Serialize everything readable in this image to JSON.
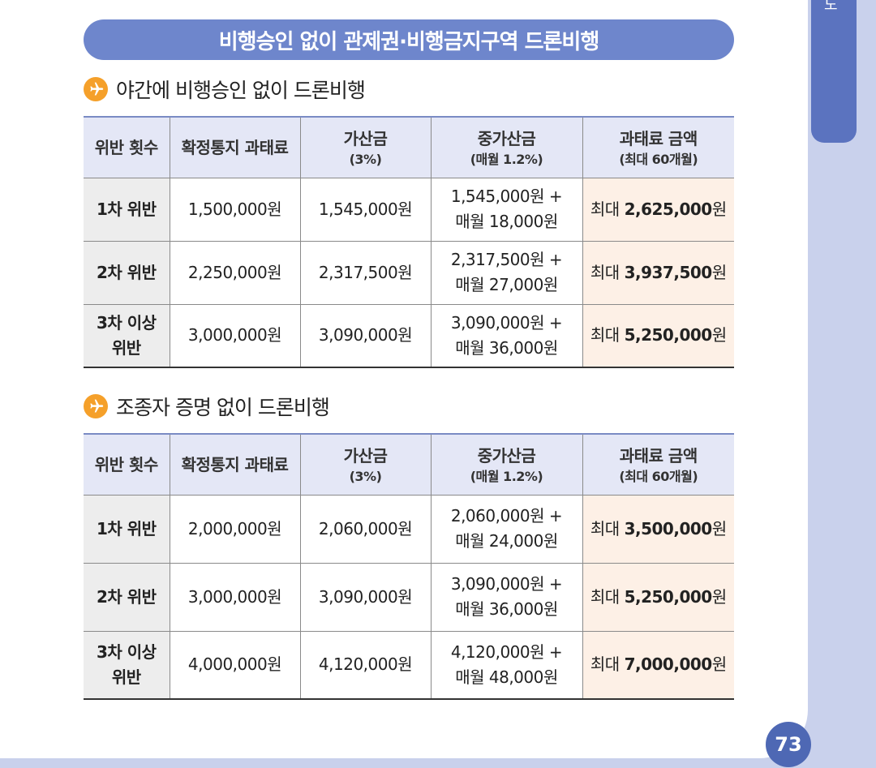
{
  "side_tab_label": "노",
  "banner_title": "비행승인 없이 관제권·비행금지구역 드론비행",
  "page_number": "73",
  "accent_color": "#6e86cc",
  "icon_color": "#f5a02a",
  "sections": [
    {
      "title": "야간에 비행승인 없이 드론비행",
      "icon": "airplane-icon",
      "headers": [
        {
          "main": "위반 횟수",
          "sub": ""
        },
        {
          "main": "확정통지 과태료",
          "sub": ""
        },
        {
          "main": "가산금",
          "sub": "(3%)"
        },
        {
          "main": "중가산금",
          "sub": "(매월 1.2%)"
        },
        {
          "main": "과태료 금액",
          "sub": "(최대 60개월)"
        }
      ],
      "rows": [
        {
          "violation": "1차 위반",
          "fine": "1,500,000원",
          "surcharge": "1,545,000원",
          "heavy_line1": "1,545,000원 +",
          "heavy_line2": "매월 18,000원",
          "max_prefix": "최대",
          "max_amount": "2,625,000",
          "max_unit": "원"
        },
        {
          "violation": "2차 위반",
          "fine": "2,250,000원",
          "surcharge": "2,317,500원",
          "heavy_line1": "2,317,500원 +",
          "heavy_line2": "매월 27,000원",
          "max_prefix": "최대",
          "max_amount": "3,937,500",
          "max_unit": "원"
        },
        {
          "violation_line1": "3차 이상",
          "violation_line2": "위반",
          "fine": "3,000,000원",
          "surcharge": "3,090,000원",
          "heavy_line1": "3,090,000원 +",
          "heavy_line2": "매월 36,000원",
          "max_prefix": "최대",
          "max_amount": "5,250,000",
          "max_unit": "원"
        }
      ]
    },
    {
      "title": "조종자 증명 없이 드론비행",
      "icon": "airplane-icon",
      "headers": [
        {
          "main": "위반 횟수",
          "sub": ""
        },
        {
          "main": "확정통지 과태료",
          "sub": ""
        },
        {
          "main": "가산금",
          "sub": "(3%)"
        },
        {
          "main": "중가산금",
          "sub": "(매월 1.2%)"
        },
        {
          "main": "과태료 금액",
          "sub": "(최대 60개월)"
        }
      ],
      "rows": [
        {
          "violation": "1차 위반",
          "fine": "2,000,000원",
          "surcharge": "2,060,000원",
          "heavy_line1": "2,060,000원 +",
          "heavy_line2": "매월 24,000원",
          "max_prefix": "최대",
          "max_amount": "3,500,000",
          "max_unit": "원"
        },
        {
          "violation": "2차 위반",
          "fine": "3,000,000원",
          "surcharge": "3,090,000원",
          "heavy_line1": "3,090,000원 +",
          "heavy_line2": "매월 36,000원",
          "max_prefix": "최대",
          "max_amount": "5,250,000",
          "max_unit": "원"
        },
        {
          "violation_line1": "3차 이상",
          "violation_line2": "위반",
          "fine": "4,000,000원",
          "surcharge": "4,120,000원",
          "heavy_line1": "4,120,000원 +",
          "heavy_line2": "매월 48,000원",
          "max_prefix": "최대",
          "max_amount": "7,000,000",
          "max_unit": "원"
        }
      ]
    }
  ]
}
